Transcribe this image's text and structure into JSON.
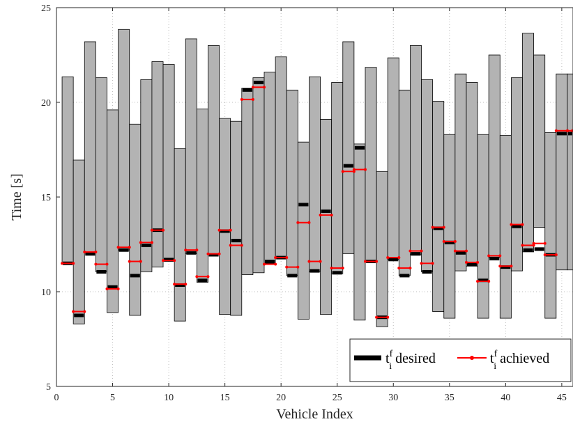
{
  "chart_data": {
    "type": "bar",
    "xlabel": "Vehicle Index",
    "ylabel": "Time [s]",
    "xlim": [
      0,
      46
    ],
    "ylim": [
      5,
      25
    ],
    "xticks": [
      "0",
      "5",
      "10",
      "15",
      "20",
      "25",
      "30",
      "35",
      "40",
      "45"
    ],
    "yticks": [
      "5",
      "10",
      "15",
      "20",
      "25"
    ],
    "grid": true,
    "legend_position": "bottom-right",
    "legend": {
      "desired": {
        "base": "t",
        "sup": "f",
        "sub": "i",
        "suffix": " desired"
      },
      "achieved": {
        "base": "t",
        "sup": "f",
        "sub": "i",
        "suffix": " achieved"
      }
    },
    "colors": {
      "window": "#b3b3b3",
      "desired": "#000000",
      "achieved": "#ff0000"
    },
    "vehicles": [
      1,
      2,
      3,
      4,
      5,
      6,
      7,
      8,
      9,
      10,
      11,
      12,
      13,
      14,
      15,
      16,
      17,
      18,
      19,
      20,
      21,
      22,
      23,
      24,
      25,
      26,
      27,
      28,
      29,
      30,
      31,
      32,
      33,
      34,
      35,
      36,
      37,
      38,
      39,
      40,
      41,
      42,
      43,
      44,
      45,
      46
    ],
    "window_low": [
      11.55,
      8.3,
      12.05,
      11.05,
      8.9,
      12.2,
      8.75,
      11.05,
      11.3,
      11.6,
      8.45,
      12.0,
      10.5,
      12.0,
      8.8,
      8.75,
      10.9,
      11.0,
      11.5,
      11.75,
      10.85,
      8.55,
      11.05,
      8.8,
      10.95,
      12.0,
      8.5,
      11.65,
      8.15,
      11.7,
      10.85,
      11.95,
      11.05,
      8.95,
      8.6,
      11.1,
      11.35,
      8.6,
      11.8,
      8.6,
      11.1,
      12.1,
      13.4,
      8.6,
      11.15,
      11.15
    ],
    "window_high": [
      21.35,
      16.95,
      23.2,
      21.3,
      19.6,
      23.85,
      18.85,
      21.2,
      22.15,
      22.0,
      17.55,
      23.35,
      19.65,
      23.0,
      19.15,
      19.0,
      20.75,
      21.3,
      21.6,
      22.4,
      20.65,
      17.9,
      21.35,
      19.1,
      21.05,
      23.2,
      17.8,
      21.85,
      16.35,
      22.35,
      20.65,
      23.0,
      21.2,
      20.05,
      18.3,
      21.5,
      21.05,
      18.3,
      22.5,
      18.25,
      21.3,
      23.65,
      22.5,
      18.4,
      21.5,
      21.5
    ],
    "desired": [
      11.5,
      8.75,
      12.0,
      11.05,
      10.25,
      12.2,
      10.85,
      12.45,
      13.25,
      11.7,
      10.35,
      12.05,
      10.6,
      11.95,
      13.2,
      12.7,
      20.65,
      21.05,
      11.6,
      11.8,
      10.85,
      14.6,
      11.1,
      14.25,
      11.0,
      16.65,
      17.6,
      11.6,
      8.65,
      11.7,
      10.85,
      12.0,
      11.05,
      13.35,
      12.6,
      12.05,
      11.45,
      10.6,
      11.75,
      11.3,
      13.45,
      12.2,
      12.25,
      11.95,
      18.35,
      18.35
    ],
    "achieved": [
      11.5,
      8.95,
      12.1,
      11.45,
      10.15,
      12.35,
      11.6,
      12.6,
      13.25,
      11.65,
      10.4,
      12.2,
      10.8,
      12.0,
      13.25,
      12.45,
      20.15,
      20.8,
      11.45,
      11.8,
      11.3,
      13.65,
      11.6,
      14.05,
      11.25,
      16.35,
      16.45,
      11.6,
      8.65,
      11.8,
      11.25,
      12.15,
      11.5,
      13.4,
      12.65,
      12.15,
      11.55,
      10.55,
      11.9,
      11.35,
      13.55,
      12.45,
      12.55,
      11.95,
      18.5,
      18.5
    ]
  }
}
